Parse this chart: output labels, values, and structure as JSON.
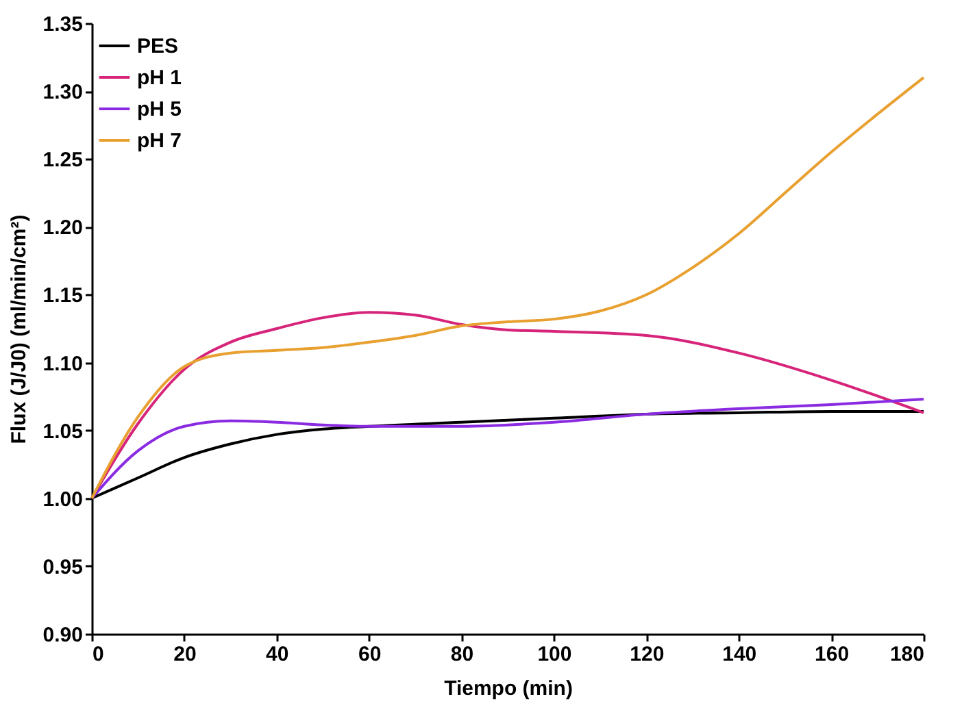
{
  "chart_data": {
    "type": "line",
    "xlabel": "Tiempo (min)",
    "ylabel": "Flux (J/J0) (ml/min/cm²)",
    "xlim": [
      0,
      180
    ],
    "xticks": [
      0,
      20,
      40,
      60,
      80,
      100,
      120,
      140,
      160,
      180
    ],
    "ylim": [
      0.9,
      1.35
    ],
    "yticks": [
      {
        "value": 0.9,
        "label": "0.90"
      },
      0.95,
      {
        "value": 1.0,
        "label": "1.00"
      },
      1.05,
      {
        "value": 1.1,
        "label": "1.10"
      },
      1.15,
      {
        "value": 1.2,
        "label": "1.20"
      },
      1.25,
      {
        "value": 1.3,
        "label": "1.30"
      },
      1.35
    ],
    "grid": false,
    "legend": "top left",
    "line_style": "solid",
    "marker": "none",
    "series": [
      {
        "name": "PES",
        "color": "#000000",
        "x": [
          0,
          10,
          20,
          30,
          40,
          50,
          60,
          80,
          100,
          120,
          140,
          160,
          180
        ],
        "values": [
          1.0,
          1.015,
          1.03,
          1.04,
          1.047,
          1.051,
          1.053,
          1.056,
          1.059,
          1.062,
          1.063,
          1.064,
          1.064
        ]
      },
      {
        "name": "pH 1",
        "color": "#d6247a",
        "x": [
          0,
          10,
          20,
          30,
          40,
          50,
          60,
          70,
          80,
          90,
          100,
          120,
          140,
          160,
          180
        ],
        "values": [
          1.0,
          1.055,
          1.095,
          1.115,
          1.125,
          1.133,
          1.137,
          1.135,
          1.128,
          1.124,
          1.123,
          1.12,
          1.107,
          1.087,
          1.063
        ]
      },
      {
        "name": "pH 5",
        "color": "#8a2be2",
        "x": [
          0,
          10,
          20,
          30,
          40,
          50,
          60,
          80,
          100,
          120,
          140,
          160,
          180
        ],
        "values": [
          1.0,
          1.035,
          1.053,
          1.057,
          1.056,
          1.054,
          1.053,
          1.053,
          1.056,
          1.062,
          1.066,
          1.069,
          1.073
        ]
      },
      {
        "name": "pH 7",
        "color": "#e8a030",
        "x": [
          0,
          10,
          20,
          30,
          40,
          50,
          60,
          70,
          80,
          90,
          100,
          110,
          120,
          130,
          140,
          150,
          160,
          170,
          180
        ],
        "values": [
          1.0,
          1.06,
          1.097,
          1.107,
          1.109,
          1.111,
          1.115,
          1.12,
          1.127,
          1.13,
          1.132,
          1.138,
          1.15,
          1.17,
          1.195,
          1.225,
          1.255,
          1.283,
          1.31
        ]
      }
    ]
  }
}
